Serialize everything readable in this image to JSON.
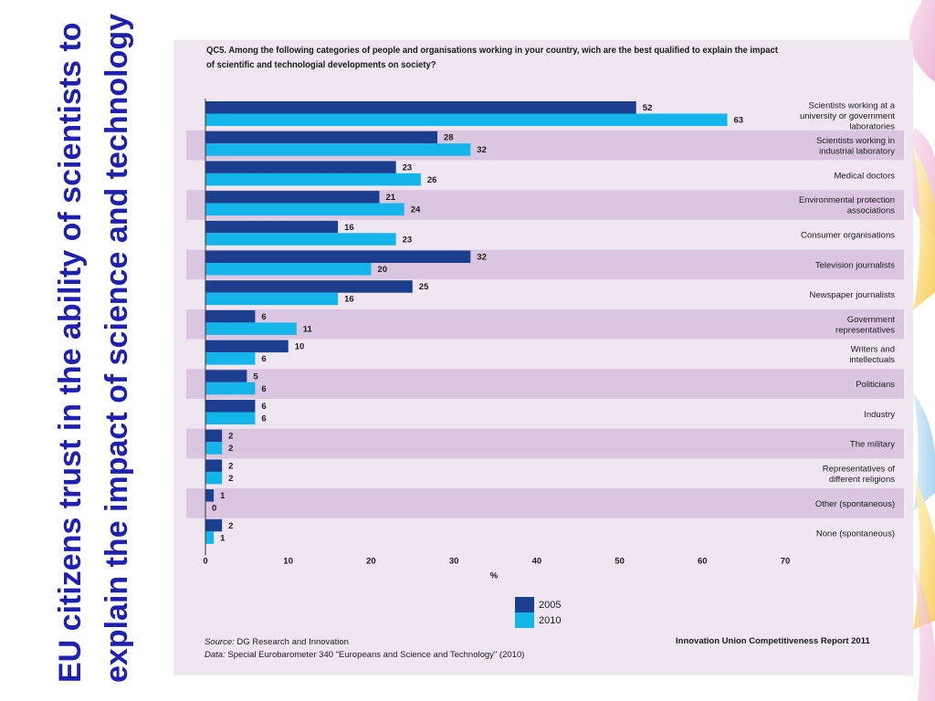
{
  "slide": {
    "title": "EU citizens trust in the ability of scientists to explain the impact of science and technology"
  },
  "colors": {
    "series_2005": "#1b3e8f",
    "series_2010": "#13b5ea",
    "band": "#dbc6e1",
    "panel": "#efe6f2",
    "title_text": "#1f1fb0"
  },
  "chart_data": {
    "type": "bar",
    "orientation": "horizontal",
    "title": "QC5. Among the following categories of people and organisations working in your country, wich are the best qualified to explain the impact of scientific and technologial developments on society?",
    "xlabel": "%",
    "xlim": [
      0,
      70
    ],
    "xticks": [
      "0",
      "10",
      "20",
      "30",
      "40",
      "50",
      "60",
      "70"
    ],
    "legend_position": "bottom",
    "categories": [
      "Scientists working at a university or government laboratories",
      "Scientists working in industrial laboratory",
      "Medical doctors",
      "Environmental protection associations",
      "Consumer organisations",
      "Television journalists",
      "Newspaper journalists",
      "Government representatives",
      "Writers and intellectuals",
      "Politicians",
      "Industry",
      "The military",
      "Representatives of different religions",
      "Other (spontaneous)",
      "None (spontaneous)"
    ],
    "category_lines": [
      [
        "Scientists working at a",
        "university or government",
        "laboratories"
      ],
      [
        "Scientists working in",
        "industrial laboratory"
      ],
      [
        "Medical doctors"
      ],
      [
        "Environmental protection",
        "associations"
      ],
      [
        "Consumer organisations"
      ],
      [
        "Television journalists"
      ],
      [
        "Newspaper journalists"
      ],
      [
        "Government",
        "representatives"
      ],
      [
        "Writers and",
        "intellectuals"
      ],
      [
        "Politicians"
      ],
      [
        "Industry"
      ],
      [
        "The military"
      ],
      [
        "Representatives of",
        "different religions"
      ],
      [
        "Other (spontaneous)"
      ],
      [
        "None (spontaneous)"
      ]
    ],
    "series": [
      {
        "name": "2005",
        "values": [
          52,
          28,
          23,
          21,
          16,
          32,
          25,
          6,
          10,
          5,
          6,
          2,
          2,
          1,
          2
        ]
      },
      {
        "name": "2010",
        "values": [
          63,
          32,
          26,
          24,
          23,
          20,
          16,
          11,
          6,
          6,
          6,
          2,
          2,
          0,
          1
        ]
      }
    ],
    "source_label": "Source:",
    "source": "DG Research and Innovation",
    "data_label": "Data:",
    "data_source": "Special Eurobarometer 340 \"Europeans and Science and Technology\" (2010)",
    "report": "Innovation Union Competitiveness Report 2011"
  }
}
